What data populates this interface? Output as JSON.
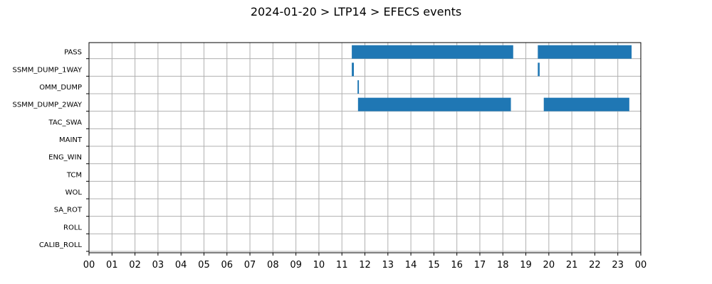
{
  "chart_data": {
    "type": "gantt",
    "title": "2024-01-20 > LTP14 > EFECS events",
    "xlabel": "",
    "ylabel": "",
    "xlim": [
      0,
      24
    ],
    "x_tick_labels": [
      "00",
      "01",
      "02",
      "03",
      "04",
      "05",
      "06",
      "07",
      "08",
      "09",
      "10",
      "11",
      "12",
      "13",
      "14",
      "15",
      "16",
      "17",
      "18",
      "19",
      "20",
      "21",
      "22",
      "23",
      "00"
    ],
    "grid": true,
    "bar_color": "#1f77b4",
    "categories": [
      "PASS",
      "SSMM_DUMP_1WAY",
      "OMM_DUMP",
      "SSMM_DUMP_2WAY",
      "TAC_SWA",
      "MAINT",
      "ENG_WIN",
      "TCM",
      "WOL",
      "SA_ROT",
      "ROLL",
      "CALIB_ROLL"
    ],
    "events": [
      {
        "category": "PASS",
        "start": 11.43,
        "end": 18.45
      },
      {
        "category": "PASS",
        "start": 19.52,
        "end": 23.6
      },
      {
        "category": "SSMM_DUMP_1WAY",
        "start": 11.43,
        "end": 11.52
      },
      {
        "category": "SSMM_DUMP_1WAY",
        "start": 19.52,
        "end": 19.6
      },
      {
        "category": "OMM_DUMP",
        "start": 11.68,
        "end": 11.74
      },
      {
        "category": "SSMM_DUMP_2WAY",
        "start": 11.7,
        "end": 18.35
      },
      {
        "category": "SSMM_DUMP_2WAY",
        "start": 19.78,
        "end": 23.5
      }
    ]
  }
}
